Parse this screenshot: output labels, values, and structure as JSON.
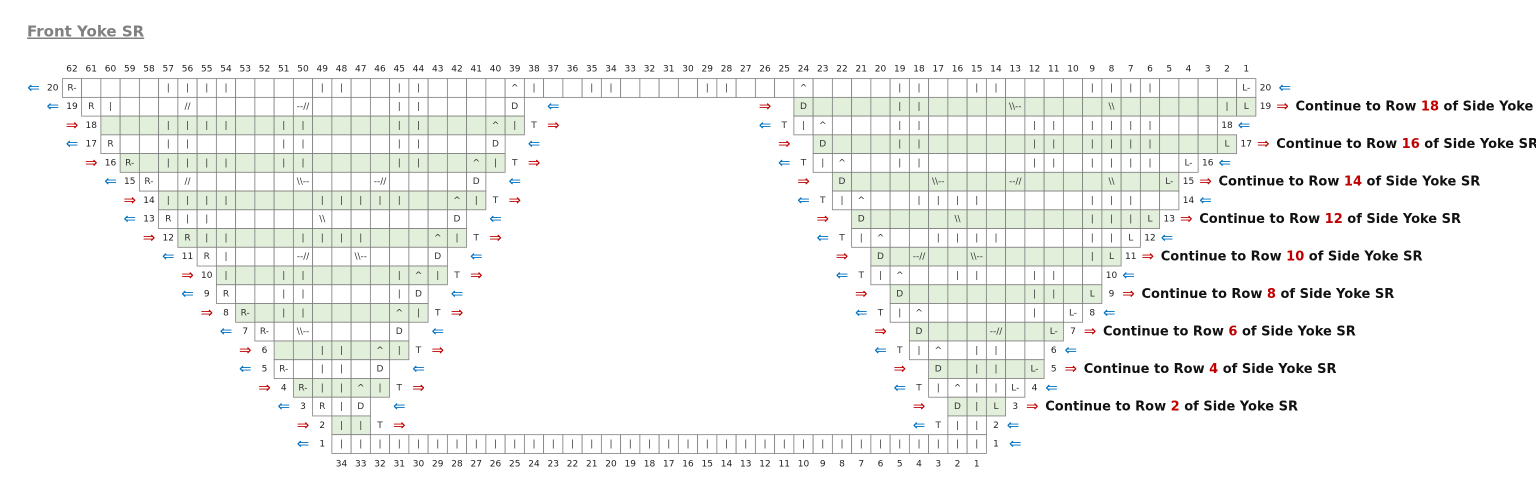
{
  "title": "Front Yoke SR",
  "arrows": {
    "rs": "⇒",
    "ws": "⇐"
  },
  "columns": [
    62,
    61,
    60,
    59,
    58,
    57,
    56,
    55,
    54,
    53,
    52,
    51,
    50,
    49,
    48,
    47,
    46,
    45,
    44,
    43,
    42,
    41,
    40,
    39,
    38,
    37,
    36,
    35,
    34,
    33,
    32,
    31,
    30,
    29,
    28,
    27,
    26,
    25,
    24,
    23,
    22,
    21,
    20,
    19,
    18,
    17,
    16,
    15,
    14,
    13,
    12,
    11,
    10,
    9,
    8,
    7,
    6,
    5,
    4,
    3,
    2,
    1
  ],
  "bottom_columns": [
    34,
    33,
    32,
    31,
    30,
    29,
    28,
    27,
    26,
    25,
    24,
    23,
    22,
    21,
    20,
    19,
    18,
    17,
    16,
    15,
    14,
    13,
    12,
    11,
    10,
    9,
    8,
    7,
    6,
    5,
    4,
    3,
    2,
    1
  ],
  "rows": [
    {
      "label": "20",
      "full": {
        "from": 62,
        "rs": false,
        "cells": [
          "R-",
          null,
          null,
          null,
          null,
          "|",
          "|",
          "|",
          "|",
          null,
          null,
          null,
          null,
          "|",
          "|",
          null,
          null,
          "|",
          "|",
          null,
          null,
          null,
          null,
          "^",
          "|",
          null,
          null,
          "|",
          "|",
          null,
          null,
          null,
          null,
          "|",
          "|",
          null,
          null,
          null,
          "^",
          null,
          null,
          null,
          null,
          "|",
          "|",
          null,
          null,
          "|",
          "|",
          null,
          null,
          null,
          null,
          "|",
          "|",
          "|",
          "|",
          null,
          null,
          null,
          null,
          "L-"
        ]
      }
    },
    {
      "label": "19",
      "left": {
        "from": 61,
        "rs": false,
        "cells": [
          "R",
          "|",
          null,
          null,
          null,
          "//",
          null,
          null,
          null,
          null,
          null,
          "--//",
          null,
          null,
          null,
          null,
          "|",
          "|",
          null,
          null,
          null,
          null,
          "D"
        ]
      },
      "right": {
        "from": 24,
        "rs": true,
        "cells": [
          "D",
          null,
          null,
          null,
          null,
          "|",
          "|",
          null,
          null,
          null,
          null,
          "\\\\--",
          null,
          null,
          null,
          null,
          "\\\\",
          null,
          null,
          null,
          null,
          null,
          "|",
          "L"
        ]
      },
      "note": {
        "pre": "Continue to Row ",
        "num": "18",
        "post": " of Side Yoke SR"
      }
    },
    {
      "label": "18",
      "left": {
        "from": 60,
        "rs": true,
        "inner": "T",
        "cells": [
          null,
          null,
          null,
          "|",
          "|",
          "|",
          "|",
          null,
          null,
          "|",
          "|",
          null,
          null,
          null,
          null,
          "|",
          "|",
          null,
          null,
          null,
          "^",
          "|"
        ]
      },
      "right": {
        "from": 24,
        "rs": false,
        "inner": "T",
        "cells": [
          "|",
          "^",
          null,
          null,
          null,
          "|",
          "|",
          null,
          null,
          null,
          null,
          null,
          "|",
          "|",
          null,
          "|",
          "|",
          "|",
          "|",
          null,
          null,
          null
        ]
      }
    },
    {
      "label": "17",
      "left": {
        "from": 60,
        "rs": false,
        "cells": [
          "R",
          null,
          null,
          "|",
          "|",
          null,
          null,
          null,
          null,
          "|",
          "|",
          null,
          null,
          null,
          null,
          "|",
          "|",
          null,
          null,
          null,
          "D"
        ]
      },
      "right": {
        "from": 23,
        "rs": true,
        "cells": [
          "D",
          null,
          null,
          null,
          "|",
          "|",
          null,
          null,
          null,
          null,
          null,
          "|",
          "|",
          null,
          "|",
          "|",
          "|",
          "|",
          null,
          null,
          null,
          "L"
        ]
      },
      "note": {
        "pre": "Continue to Row ",
        "num": "16",
        "post": " of Side Yoke SR"
      }
    },
    {
      "label": "16",
      "left": {
        "from": 59,
        "rs": true,
        "inner": "T",
        "cells": [
          "R-",
          null,
          "|",
          "|",
          "|",
          "|",
          null,
          null,
          "|",
          "|",
          null,
          null,
          null,
          null,
          "|",
          "|",
          null,
          null,
          "^",
          "|"
        ]
      },
      "right": {
        "from": 23,
        "rs": false,
        "inner": "T",
        "cells": [
          "|",
          "^",
          null,
          null,
          "|",
          "|",
          null,
          null,
          null,
          null,
          null,
          "|",
          "|",
          null,
          "|",
          "|",
          "|",
          "|",
          null,
          "L-"
        ]
      }
    },
    {
      "label": "15",
      "left": {
        "from": 58,
        "rs": false,
        "cells": [
          "R-",
          null,
          "//",
          null,
          null,
          null,
          null,
          null,
          "\\\\--",
          null,
          null,
          null,
          "--//",
          null,
          null,
          null,
          null,
          "D"
        ]
      },
      "right": {
        "from": 22,
        "rs": true,
        "cells": [
          "D",
          null,
          null,
          null,
          null,
          "\\\\--",
          null,
          null,
          null,
          "--//",
          null,
          null,
          null,
          null,
          "\\\\",
          null,
          null,
          "L-"
        ]
      },
      "note": {
        "pre": "Continue to Row ",
        "num": "14",
        "post": " of Side Yoke SR"
      }
    },
    {
      "label": "14",
      "left": {
        "from": 57,
        "rs": true,
        "inner": "T",
        "cells": [
          "|",
          "|",
          "|",
          "|",
          null,
          null,
          null,
          null,
          "|",
          "|",
          "|",
          "|",
          "|",
          null,
          null,
          "^",
          "|"
        ]
      },
      "right": {
        "from": 22,
        "rs": false,
        "inner": "T",
        "cells": [
          "|",
          "^",
          null,
          null,
          "|",
          "|",
          "|",
          "|",
          null,
          null,
          null,
          null,
          null,
          "|",
          "|",
          "|",
          null,
          null
        ]
      }
    },
    {
      "label": "13",
      "left": {
        "from": 57,
        "rs": false,
        "cells": [
          "R",
          "|",
          "|",
          null,
          null,
          null,
          null,
          null,
          "\\\\",
          null,
          null,
          null,
          null,
          null,
          null,
          "D"
        ]
      },
      "right": {
        "from": 21,
        "rs": true,
        "cells": [
          "D",
          null,
          null,
          null,
          null,
          "\\\\",
          null,
          null,
          null,
          null,
          null,
          null,
          "|",
          "|",
          "|",
          "L"
        ]
      },
      "note": {
        "pre": "Continue to Row ",
        "num": "12",
        "post": " of Side Yoke SR"
      }
    },
    {
      "label": "12",
      "left": {
        "from": 56,
        "rs": true,
        "inner": "T",
        "cells": [
          "R",
          "|",
          "|",
          null,
          null,
          null,
          "|",
          "|",
          "|",
          "|",
          null,
          null,
          null,
          "^",
          "|"
        ]
      },
      "right": {
        "from": 21,
        "rs": false,
        "inner": "T",
        "cells": [
          "|",
          "^",
          null,
          null,
          "|",
          "|",
          "|",
          "|",
          null,
          null,
          null,
          null,
          "|",
          "|",
          "L"
        ]
      }
    },
    {
      "label": "11",
      "left": {
        "from": 55,
        "rs": false,
        "cells": [
          "R",
          "|",
          null,
          null,
          null,
          "--//",
          null,
          null,
          "\\\\--",
          null,
          null,
          null,
          "D"
        ]
      },
      "right": {
        "from": 20,
        "rs": true,
        "cells": [
          "D",
          null,
          "--//",
          null,
          null,
          "\\\\--",
          null,
          null,
          null,
          null,
          null,
          "|",
          "L"
        ]
      },
      "note": {
        "pre": "Continue to Row ",
        "num": "10",
        "post": " of Side Yoke SR"
      }
    },
    {
      "label": "10",
      "left": {
        "from": 54,
        "rs": true,
        "inner": "T",
        "cells": [
          "|",
          null,
          null,
          "|",
          "|",
          null,
          null,
          null,
          null,
          "|",
          "^",
          "|"
        ]
      },
      "right": {
        "from": 20,
        "rs": false,
        "inner": "T",
        "cells": [
          "|",
          "^",
          null,
          null,
          "|",
          "|",
          null,
          null,
          "|",
          "|",
          null,
          null
        ]
      }
    },
    {
      "label": "9",
      "left": {
        "from": 54,
        "rs": false,
        "cells": [
          "R",
          null,
          null,
          "|",
          "|",
          null,
          null,
          null,
          null,
          "|",
          "D"
        ]
      },
      "right": {
        "from": 19,
        "rs": true,
        "cells": [
          "D",
          null,
          null,
          null,
          null,
          null,
          null,
          "|",
          "|",
          null,
          "L"
        ]
      },
      "note": {
        "pre": "Continue to Row ",
        "num": "8",
        "post": " of Side Yoke SR"
      }
    },
    {
      "label": "8",
      "left": {
        "from": 53,
        "rs": true,
        "inner": "T",
        "cells": [
          "R-",
          null,
          "|",
          "|",
          null,
          null,
          null,
          null,
          "^",
          "|"
        ]
      },
      "right": {
        "from": 19,
        "rs": false,
        "inner": "T",
        "cells": [
          "|",
          "^",
          null,
          null,
          null,
          null,
          null,
          "|",
          null,
          "L-"
        ]
      }
    },
    {
      "label": "7",
      "left": {
        "from": 52,
        "rs": false,
        "cells": [
          "R-",
          null,
          "\\\\--",
          null,
          null,
          null,
          null,
          "D"
        ]
      },
      "right": {
        "from": 18,
        "rs": true,
        "cells": [
          "D",
          null,
          null,
          null,
          "--//",
          null,
          null,
          "L-"
        ]
      },
      "note": {
        "pre": "Continue to Row ",
        "num": "6",
        "post": " of Side Yoke SR"
      }
    },
    {
      "label": "6",
      "left": {
        "from": 51,
        "rs": true,
        "inner": "T",
        "cells": [
          null,
          null,
          "|",
          "|",
          null,
          "^",
          "|"
        ]
      },
      "right": {
        "from": 18,
        "rs": false,
        "inner": "T",
        "cells": [
          "|",
          "^",
          null,
          "|",
          "|",
          null,
          null
        ]
      }
    },
    {
      "label": "5",
      "left": {
        "from": 51,
        "rs": false,
        "cells": [
          "R-",
          null,
          "|",
          "|",
          null,
          "D"
        ]
      },
      "right": {
        "from": 17,
        "rs": true,
        "cells": [
          "D",
          null,
          "|",
          "|",
          null,
          "L-"
        ]
      },
      "note": {
        "pre": "Continue to Row ",
        "num": "4",
        "post": " of Side Yoke SR"
      }
    },
    {
      "label": "4",
      "left": {
        "from": 50,
        "rs": true,
        "inner": "T",
        "cells": [
          "R-",
          "|",
          "|",
          "^",
          "|"
        ]
      },
      "right": {
        "from": 17,
        "rs": false,
        "inner": "T",
        "cells": [
          "|",
          "^",
          "|",
          "|",
          "L-"
        ]
      }
    },
    {
      "label": "3",
      "left": {
        "from": 49,
        "rs": false,
        "cells": [
          "R",
          "|",
          "D"
        ]
      },
      "right": {
        "from": 16,
        "rs": true,
        "cells": [
          "D",
          "|",
          "L"
        ]
      },
      "note": {
        "pre": "Continue to Row ",
        "num": "2",
        "post": " of Side Yoke SR"
      }
    },
    {
      "label": "2",
      "left": {
        "from": 48,
        "rs": true,
        "inner": "T",
        "cells": [
          "|",
          "|"
        ]
      },
      "right": {
        "from": 16,
        "rs": false,
        "inner": "T",
        "cells": [
          "|",
          "|"
        ]
      }
    },
    {
      "label": "1",
      "full": {
        "from": 48,
        "rs": false,
        "cells": [
          "|",
          "|",
          "|",
          "|",
          "|",
          "|",
          "|",
          "|",
          "|",
          "|",
          "|",
          "|",
          "|",
          "|",
          "|",
          "|",
          "|",
          "|",
          "|",
          "|",
          "|",
          "|",
          "|",
          "|",
          "|",
          "|",
          "|",
          "|",
          "|",
          "|",
          "|",
          "|",
          "|",
          "|"
        ]
      }
    }
  ]
}
